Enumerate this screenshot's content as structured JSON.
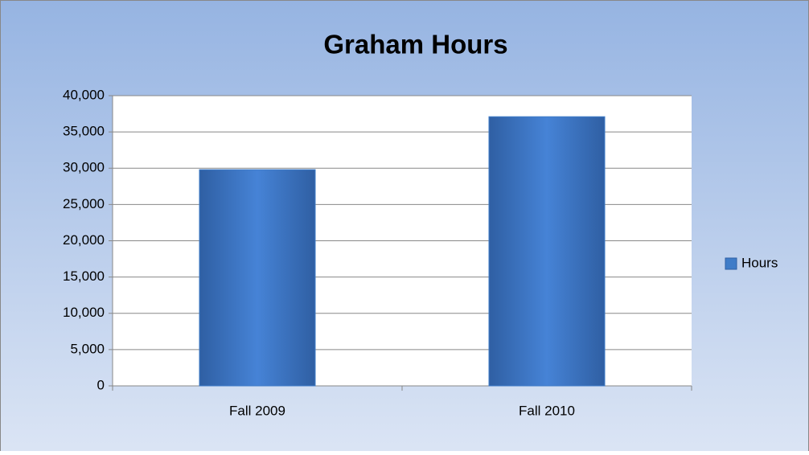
{
  "chart_data": {
    "type": "bar",
    "title": "Graham Hours",
    "categories": [
      "Fall 2009",
      "Fall 2010"
    ],
    "series": [
      {
        "name": "Hours",
        "color": "#3f7cc8",
        "values": [
          29800,
          37100
        ]
      }
    ],
    "ylim": [
      0,
      40000
    ],
    "yticks": [
      0,
      {
        "value": 5000,
        "label": "5,000"
      },
      {
        "value": 10000,
        "label": "10,000"
      },
      {
        "value": 15000,
        "label": "15,000"
      },
      {
        "value": 20000,
        "label": "20,000"
      },
      {
        "value": 25000,
        "label": "25,000"
      },
      {
        "value": 30000,
        "label": "30,000"
      },
      {
        "value": 35000,
        "label": "35,000"
      },
      {
        "value": 40000,
        "label": "40,000"
      }
    ],
    "grid": true,
    "legend": "right"
  }
}
